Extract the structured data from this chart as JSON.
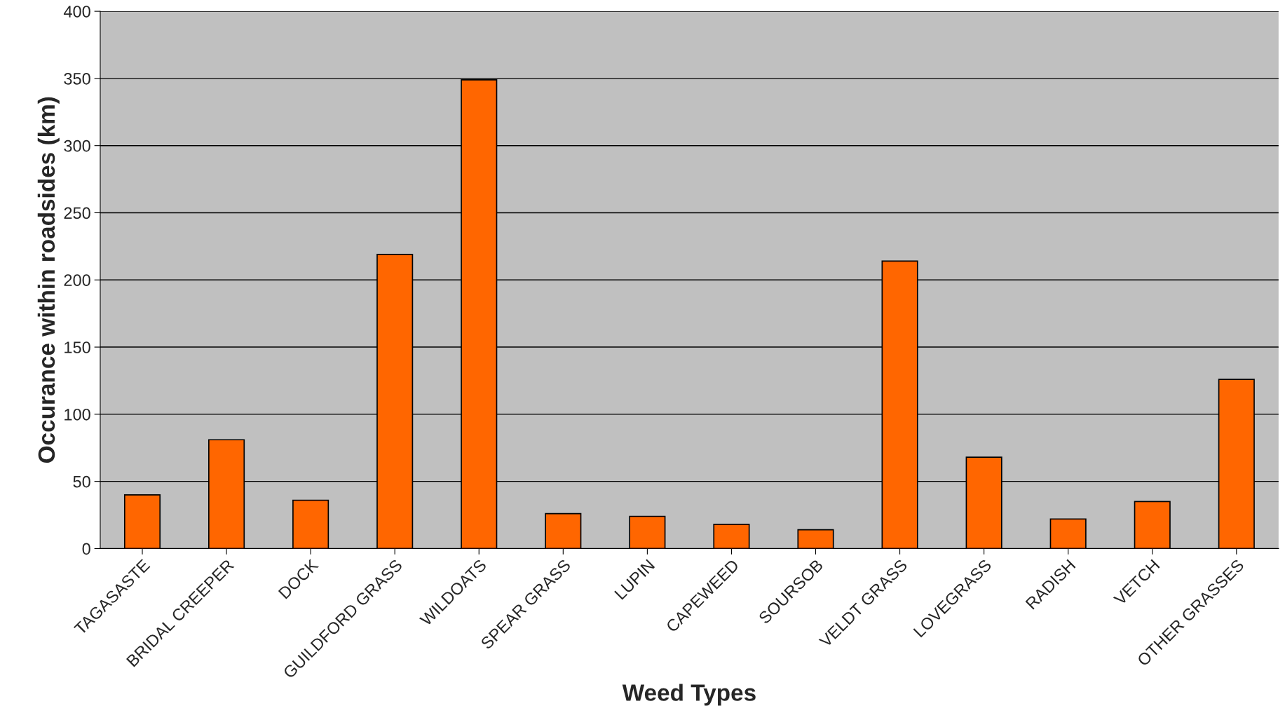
{
  "chart_data": {
    "type": "bar",
    "xlabel": "Weed Types",
    "ylabel": "Occurance within roadsides (km)",
    "categories": [
      "TAGASASTE",
      "BRIDAL CREEPER",
      "DOCK",
      "GUILDFORD GRASS",
      "WILDOATS",
      "SPEAR GRASS",
      "LUPIN",
      "CAPEWEED",
      "SOURSOB",
      "VELDT GRASS",
      "LOVEGRASS",
      "RADISH",
      "VETCH",
      "OTHER GRASSES"
    ],
    "values": [
      40,
      81,
      36,
      219,
      349,
      26,
      24,
      18,
      14,
      214,
      68,
      22,
      35,
      126
    ],
    "color": "#ff6600",
    "ylim": [
      0,
      400
    ],
    "yticks": [
      0,
      50,
      100,
      150,
      200,
      250,
      300,
      350,
      400
    ],
    "grid": "y",
    "legend": false
  }
}
